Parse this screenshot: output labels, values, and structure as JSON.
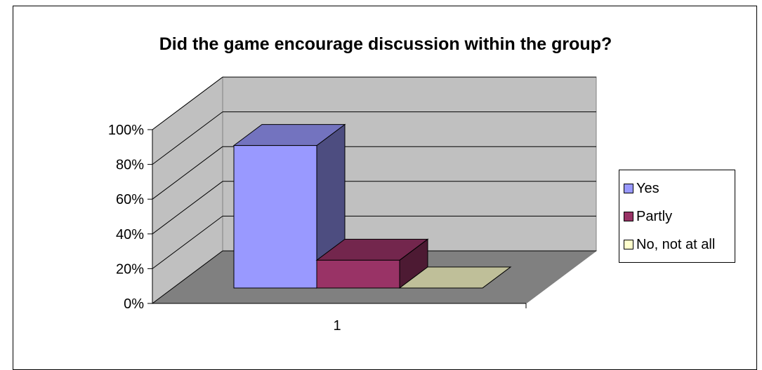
{
  "chart_data": {
    "type": "bar",
    "title": "Did the game encourage discussion within the group?",
    "categories": [
      "1"
    ],
    "series": [
      {
        "name": "Yes",
        "values": [
          82
        ],
        "color": "#9999FF"
      },
      {
        "name": "Partly",
        "values": [
          16
        ],
        "color": "#993366"
      },
      {
        "name": "No, not at all",
        "values": [
          0
        ],
        "color": "#FFFFCC"
      }
    ],
    "ylim": [
      0,
      100
    ],
    "yticks": [
      "0%",
      "20%",
      "40%",
      "60%",
      "80%",
      "100%"
    ],
    "grid": true,
    "legend_position": "right",
    "style": "3d"
  }
}
